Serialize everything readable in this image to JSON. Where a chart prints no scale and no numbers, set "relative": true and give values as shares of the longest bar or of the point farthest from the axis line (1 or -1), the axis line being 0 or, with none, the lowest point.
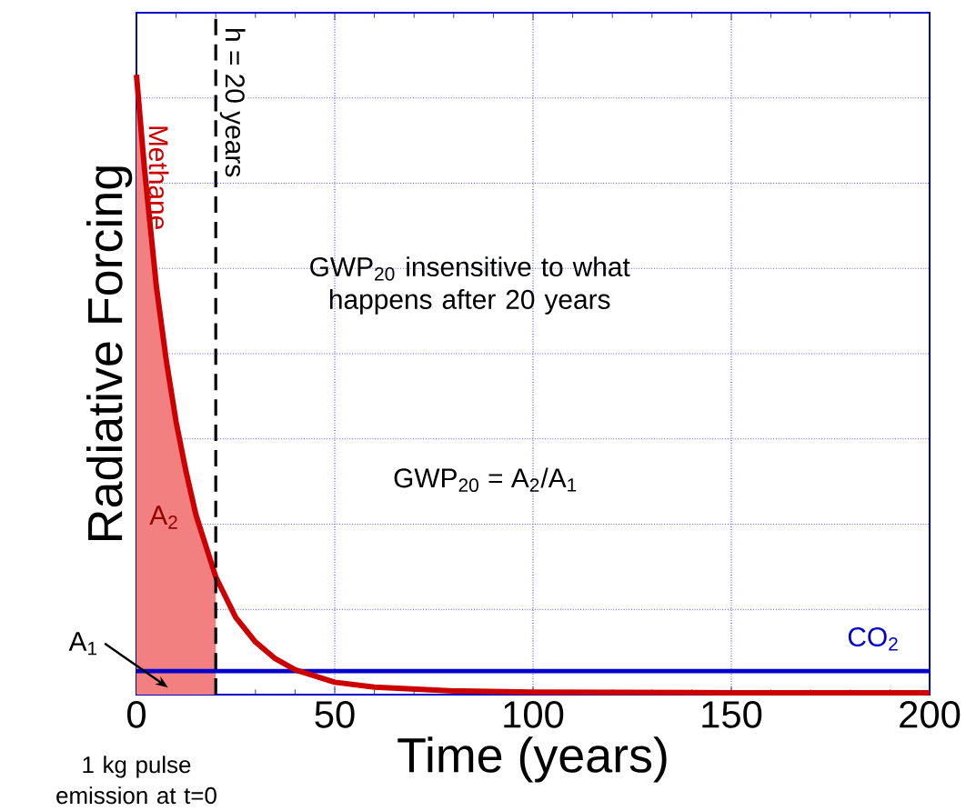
{
  "chart_data": {
    "type": "line",
    "xlabel": "Time (years)",
    "ylabel": "Radiative Forcing",
    "relative": true,
    "xlim": [
      0,
      200
    ],
    "xticks": [
      0,
      50,
      100,
      150,
      200
    ],
    "grid": true,
    "series": [
      {
        "type": "area",
        "color": "#f28080",
        "x": [
          0,
          2,
          5,
          7.5,
          10,
          12.5,
          15,
          17.5,
          20
        ],
        "values": [
          1.0,
          0.85,
          0.66,
          0.54,
          0.44,
          0.36,
          0.29,
          0.24,
          0.19
        ]
      },
      {
        "name": "CO$_{2}$",
        "color": "#0000cc",
        "x": [
          0,
          200
        ],
        "values": [
          0.038,
          0.038
        ]
      },
      {
        "name": "Methane",
        "color": "#cc0000",
        "x": [
          0,
          2,
          5,
          7.5,
          10,
          12.5,
          15,
          17.5,
          20,
          25,
          30,
          35,
          40,
          50,
          60,
          80,
          100,
          150,
          200
        ],
        "values": [
          1.0,
          0.85,
          0.66,
          0.54,
          0.44,
          0.36,
          0.29,
          0.24,
          0.19,
          0.125,
          0.085,
          0.058,
          0.04,
          0.02,
          0.012,
          0.006,
          0.004,
          0.003,
          0.003
        ]
      }
    ],
    "ref_lines": [
      {
        "axis": "x",
        "value": 20,
        "label": "h = 20 years",
        "line_style": "dashed",
        "color": "#000000"
      }
    ],
    "annotations": [
      "GWP$_{20}$ insensitive to what happens after 20 years",
      "GWP$_{20}$ =  A$_{2}$/A$_{1}$",
      "A$_{2}$",
      "A$_{1}$",
      "1 kg pulse emission at t=0"
    ]
  }
}
